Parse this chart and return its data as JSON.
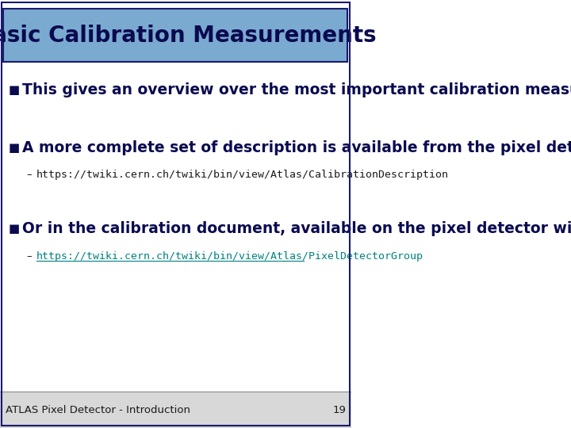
{
  "title": "Basic Calibration Measurements",
  "title_bg_color": "#7aaad0",
  "title_border_color": "#1a1a6e",
  "title_text_color": "#0a0a50",
  "bg_color": "#ffffff",
  "footer_bg_color": "#d8d8d8",
  "footer_text": "ATLAS Pixel Detector - Introduction",
  "footer_number": "19",
  "bullet1": "This gives an overview over the most important calibration measurements.",
  "bullet2": "A more complete set of description is available from the pixel detector wiki",
  "bullet2_sub": "https://twiki.cern.ch/twiki/bin/view/Atlas/CalibrationDescription",
  "bullet3": "Or in the calibration document, available on the pixel detector wiki",
  "bullet3_sub": "https://twiki.cern.ch/twiki/bin/view/Atlas/PixelDetectorGroup",
  "bullet3_sub_color": "#008080",
  "bullet_color": "#0a0a50",
  "sub_color": "#1a1a1a",
  "body_font_size": 13.5,
  "sub_font_size": 9.5,
  "footer_font_size": 9.5,
  "title_font_size": 20
}
